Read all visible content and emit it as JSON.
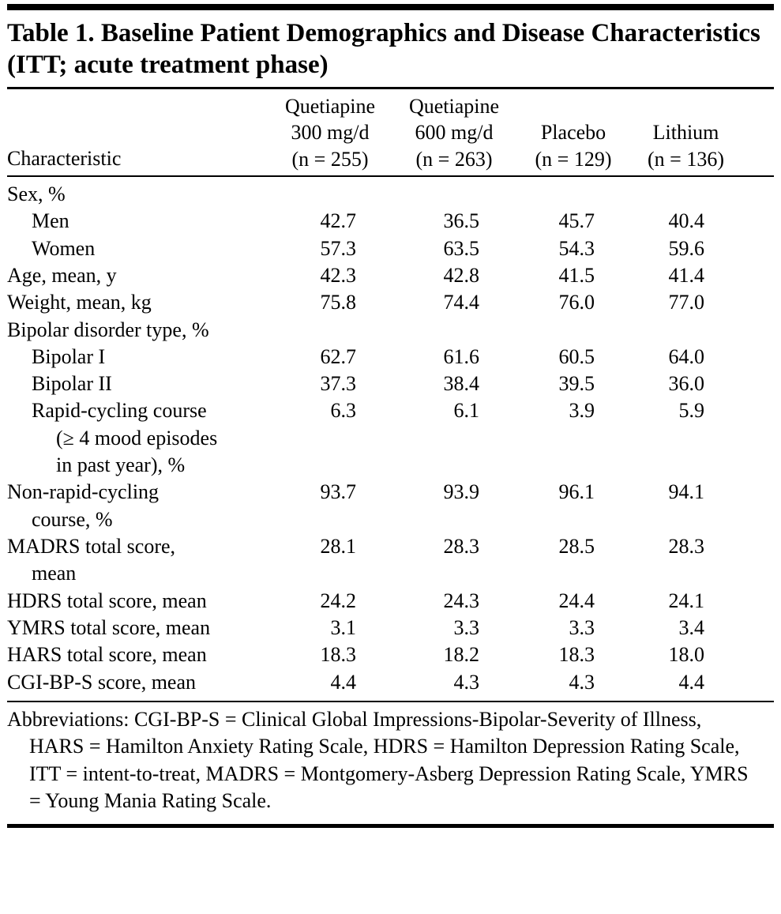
{
  "page": {
    "background_color": "#ffffff",
    "text_color": "#000000",
    "rule_color": "#000000"
  },
  "table": {
    "title": "Table 1. Baseline Patient Demographics and Disease Characteristics (ITT; acute treatment phase)",
    "header": {
      "characteristic_label": "Characteristic",
      "columns": [
        "Quetiapine\n300 mg/d\n(n = 255)",
        "Quetiapine\n600 mg/d\n(n = 263)",
        "Placebo\n(n = 129)",
        "Lithium\n(n = 136)"
      ]
    },
    "rows": [
      {
        "label": "Sex, %",
        "indent": 0,
        "values": [
          "",
          "",
          "",
          ""
        ]
      },
      {
        "label": "Men",
        "indent": 1,
        "values": [
          "42.7",
          "36.5",
          "45.7",
          "40.4"
        ]
      },
      {
        "label": "Women",
        "indent": 1,
        "values": [
          "57.3",
          "63.5",
          "54.3",
          "59.6"
        ]
      },
      {
        "label": "Age, mean, y",
        "indent": 0,
        "values": [
          "42.3",
          "42.8",
          "41.5",
          "41.4"
        ]
      },
      {
        "label": "Weight, mean, kg",
        "indent": 0,
        "values": [
          "75.8",
          "74.4",
          "76.0",
          "77.0"
        ]
      },
      {
        "label": "Bipolar disorder type, %",
        "indent": 0,
        "values": [
          "",
          "",
          "",
          ""
        ]
      },
      {
        "label": "Bipolar I",
        "indent": 1,
        "values": [
          "62.7",
          "61.6",
          "60.5",
          "64.0"
        ]
      },
      {
        "label": "Bipolar II",
        "indent": 1,
        "values": [
          "37.3",
          "38.4",
          "39.5",
          "36.0"
        ]
      },
      {
        "label": "Rapid-cycling course\n(≥ 4 mood episodes\nin past year), %",
        "indent": 1,
        "values": [
          "6.3",
          "6.1",
          "3.9",
          "5.9"
        ]
      },
      {
        "label": "Non-rapid-cycling\ncourse, %",
        "indent": 0,
        "values": [
          "93.7",
          "93.9",
          "96.1",
          "94.1"
        ]
      },
      {
        "label": "MADRS total score,\nmean",
        "indent": 0,
        "values": [
          "28.1",
          "28.3",
          "28.5",
          "28.3"
        ]
      },
      {
        "label": "HDRS total score, mean",
        "indent": 0,
        "values": [
          "24.2",
          "24.3",
          "24.4",
          "24.1"
        ]
      },
      {
        "label": "YMRS total score, mean",
        "indent": 0,
        "values": [
          "3.1",
          "3.3",
          "3.3",
          "3.4"
        ]
      },
      {
        "label": "HARS total score, mean",
        "indent": 0,
        "values": [
          "18.3",
          "18.2",
          "18.3",
          "18.0"
        ]
      },
      {
        "label": "CGI-BP-S score, mean",
        "indent": 0,
        "values": [
          "4.4",
          "4.3",
          "4.3",
          "4.4"
        ]
      }
    ],
    "footnote": "Abbreviations: CGI-BP-S = Clinical Global Impressions-Bipolar-Severity of Illness, HARS = Hamilton Anxiety Rating Scale, HDRS = Hamilton Depression Rating Scale, ITT = intent-to-treat, MADRS = Montgomery-Asberg Depression Rating Scale, YMRS = Young Mania Rating Scale."
  }
}
